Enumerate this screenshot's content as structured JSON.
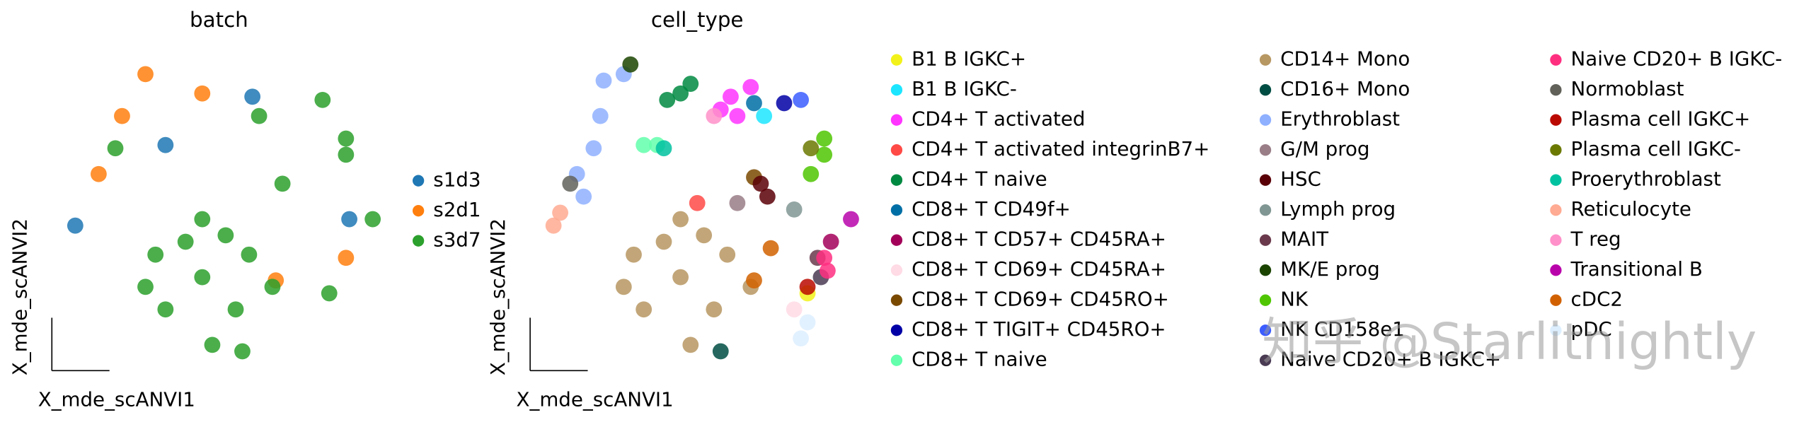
{
  "chart_data": [
    {
      "type": "scatter",
      "title": "batch",
      "xlabel": "X_mde_scANVI1",
      "ylabel": "X_mde_scANVI2",
      "xlim": [
        0,
        100
      ],
      "ylim": [
        0,
        100
      ],
      "series": [
        {
          "name": "s1d3",
          "color": "#1f77b4",
          "x": [
            7,
            34,
            60,
            89
          ],
          "y": [
            45,
            70,
            85,
            47
          ]
        },
        {
          "name": "s2d1",
          "color": "#ff7f0e",
          "x": [
            21,
            28,
            45,
            88,
            67,
            14
          ],
          "y": [
            79,
            92,
            86,
            35,
            28,
            61
          ]
        },
        {
          "name": "s3d7",
          "color": "#2ca02c",
          "x": [
            45,
            31,
            59,
            34,
            55,
            45,
            48,
            28,
            66,
            40,
            52,
            19,
            62,
            88,
            57,
            69,
            83,
            81,
            96,
            88
          ],
          "y": [
            29,
            36,
            36,
            19,
            19,
            47,
            8,
            26,
            26,
            40,
            42,
            69,
            79,
            67,
            6,
            58,
            24,
            84,
            47,
            72
          ]
        }
      ]
    },
    {
      "type": "scatter",
      "title": "cell_type",
      "xlabel": "X_mde_scANVI1",
      "ylabel": "X_mde_scANVI2",
      "xlim": [
        0,
        100
      ],
      "ylim": [
        0,
        100
      ],
      "series": [
        {
          "name": "B1 B IGKC+",
          "color": "#f2f21a",
          "x": [
            83
          ],
          "y": [
            24
          ]
        },
        {
          "name": "B1 B IGKC-",
          "color": "#1CE6FF",
          "x": [
            70
          ],
          "y": [
            79
          ]
        },
        {
          "name": "CD4+ T activated",
          "color": "#FF34FF",
          "x": [
            60,
            57,
            66,
            62
          ],
          "y": [
            85,
            81,
            88,
            79
          ]
        },
        {
          "name": "CD4+ T activated integrinB7+",
          "color": "#FF4A46",
          "x": [
            50
          ],
          "y": [
            52
          ]
        },
        {
          "name": "CD4+ T naive",
          "color": "#008941",
          "x": [
            45,
            48,
            41
          ],
          "y": [
            86,
            89,
            84
          ]
        },
        {
          "name": "CD8+ T CD49f+",
          "color": "#006FA6",
          "x": [
            67
          ],
          "y": [
            83
          ]
        },
        {
          "name": "CD8+ T CD57+ CD45RA+",
          "color": "#A30059",
          "x": [
            90
          ],
          "y": [
            40
          ]
        },
        {
          "name": "CD8+ T CD69+ CD45RA+",
          "color": "#FFDBE5",
          "x": [
            79
          ],
          "y": [
            19
          ]
        },
        {
          "name": "CD8+ T CD69+ CD45RO+",
          "color": "#7A4900",
          "x": [
            67
          ],
          "y": [
            60
          ]
        },
        {
          "name": "CD8+ T TIGIT+ CD45RO+",
          "color": "#0000A6",
          "x": [
            76
          ],
          "y": [
            83
          ]
        },
        {
          "name": "CD8+ T naive",
          "color": "#63FFAC",
          "x": [
            38,
            34
          ],
          "y": [
            70,
            70
          ]
        },
        {
          "name": "CD14+ Mono",
          "color": "#B79762",
          "x": [
            45,
            31,
            59,
            34,
            55,
            45,
            48,
            28,
            66,
            40,
            52
          ],
          "y": [
            29,
            36,
            36,
            19,
            19,
            47,
            8,
            26,
            26,
            40,
            42
          ]
        },
        {
          "name": "CD16+ Mono",
          "color": "#004D43",
          "x": [
            57
          ],
          "y": [
            6
          ]
        },
        {
          "name": "Erythroblast",
          "color": "#8FB0FF",
          "x": [
            22,
            21,
            19,
            14,
            28,
            16
          ],
          "y": [
            90,
            79,
            69,
            61,
            92,
            54
          ]
        },
        {
          "name": "G/M prog",
          "color": "#997D87",
          "x": [
            62
          ],
          "y": [
            52
          ]
        },
        {
          "name": "HSC",
          "color": "#5A0007",
          "x": [
            69,
            71
          ],
          "y": [
            58,
            54
          ]
        },
        {
          "name": "Lymph prog",
          "color": "#809693",
          "x": [
            79
          ],
          "y": [
            50
          ]
        },
        {
          "name": "MAIT",
          "color": "#6A3A4C",
          "x": [
            86
          ],
          "y": [
            35
          ]
        },
        {
          "name": "MK/E prog",
          "color": "#1B4400",
          "x": [
            30
          ],
          "y": [
            95
          ]
        },
        {
          "name": "NK",
          "color": "#4FC601",
          "x": [
            88,
            88,
            84
          ],
          "y": [
            67,
            72,
            61
          ]
        },
        {
          "name": "NK CD158e1",
          "color": "#3B5DFF",
          "x": [
            81
          ],
          "y": [
            84
          ]
        },
        {
          "name": "Naive CD20+ B IGKC+",
          "color": "#4A3B53",
          "x": [
            87
          ],
          "y": [
            29
          ]
        },
        {
          "name": "Naive CD20+ B IGKC-",
          "color": "#FF2F80",
          "x": [
            88,
            89
          ],
          "y": [
            35,
            31
          ]
        },
        {
          "name": "Normoblast",
          "color": "#61615A",
          "x": [
            12
          ],
          "y": [
            58
          ]
        },
        {
          "name": "Plasma cell IGKC+",
          "color": "#BA0900",
          "x": [
            83
          ],
          "y": [
            26
          ]
        },
        {
          "name": "Plasma cell IGKC-",
          "color": "#6B7900",
          "x": [
            84
          ],
          "y": [
            69
          ]
        },
        {
          "name": "Proerythroblast",
          "color": "#00C2A0",
          "x": [
            40
          ],
          "y": [
            69
          ]
        },
        {
          "name": "Reticulocyte",
          "color": "#FFAA92",
          "x": [
            9,
            7
          ],
          "y": [
            49,
            45
          ]
        },
        {
          "name": "T reg",
          "color": "#FF90C9",
          "x": [
            55
          ],
          "y": [
            79
          ]
        },
        {
          "name": "Transitional B",
          "color": "#B903AA",
          "x": [
            96
          ],
          "y": [
            47
          ]
        },
        {
          "name": "cDC2",
          "color": "#D16100",
          "x": [
            67,
            72
          ],
          "y": [
            28,
            38
          ]
        },
        {
          "name": "pDC",
          "color": "#DDEFFF",
          "x": [
            83,
            81
          ],
          "y": [
            15,
            10
          ]
        }
      ]
    }
  ],
  "watermark": "知乎 @Starlitnightly"
}
